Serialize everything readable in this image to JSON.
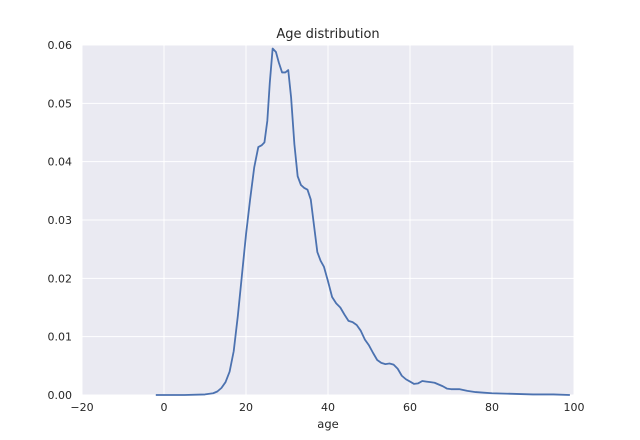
{
  "chart_data": {
    "type": "line",
    "title": "Age distribution",
    "xlabel": "age",
    "ylabel": "",
    "xlim": [
      -20,
      100
    ],
    "ylim": [
      0,
      0.06
    ],
    "x_ticks": [
      -20,
      0,
      20,
      40,
      60,
      80,
      100
    ],
    "x_tick_labels": [
      "−20",
      "0",
      "20",
      "40",
      "60",
      "80",
      "100"
    ],
    "y_ticks": [
      0,
      0.01,
      0.02,
      0.03,
      0.04,
      0.05,
      0.06
    ],
    "y_tick_labels": [
      "0.00",
      "0.01",
      "0.02",
      "0.03",
      "0.04",
      "0.05",
      "0.06"
    ],
    "grid": true,
    "legend": "none",
    "background_color": "#eaeaf2",
    "grid_color": "#ffffff",
    "line_color": "#4c72b0",
    "series": [
      {
        "x": [
          -2,
          0,
          5,
          10,
          12,
          13,
          14,
          15,
          16,
          17,
          18,
          19,
          20,
          21,
          22,
          23,
          23.8,
          24.5,
          25.2,
          25.8,
          26.5,
          27.3,
          28,
          28.8,
          29.6,
          30.3,
          31,
          31.8,
          32.6,
          33.4,
          34.2,
          35,
          35.8,
          36.6,
          37.4,
          38.2,
          39,
          40,
          41,
          42,
          43,
          44,
          45,
          46,
          47,
          48,
          49,
          50,
          51,
          52,
          53,
          54,
          55,
          56,
          57,
          58,
          59,
          60,
          61,
          62,
          63,
          64,
          65,
          66,
          67,
          68,
          69,
          70,
          72,
          74,
          76,
          78,
          80,
          85,
          90,
          95,
          99
        ],
        "y": [
          0.0,
          0.0,
          0.0,
          0.0001,
          0.0003,
          0.0006,
          0.0012,
          0.0022,
          0.004,
          0.0075,
          0.0135,
          0.0205,
          0.0275,
          0.0335,
          0.039,
          0.0425,
          0.0428,
          0.0433,
          0.047,
          0.0535,
          0.0594,
          0.0588,
          0.057,
          0.0553,
          0.0553,
          0.0557,
          0.051,
          0.043,
          0.0375,
          0.036,
          0.0355,
          0.0352,
          0.0335,
          0.029,
          0.0245,
          0.023,
          0.022,
          0.0195,
          0.0168,
          0.0157,
          0.015,
          0.0138,
          0.0127,
          0.0125,
          0.012,
          0.011,
          0.0095,
          0.0085,
          0.0072,
          0.006,
          0.0055,
          0.0053,
          0.0054,
          0.0052,
          0.0045,
          0.0033,
          0.0027,
          0.0023,
          0.0019,
          0.002,
          0.0024,
          0.0023,
          0.0022,
          0.0021,
          0.0018,
          0.0015,
          0.0011,
          0.001,
          0.001,
          0.0007,
          0.0005,
          0.0004,
          0.0003,
          0.0002,
          0.0001,
          0.0001,
          0.0
        ]
      }
    ]
  }
}
